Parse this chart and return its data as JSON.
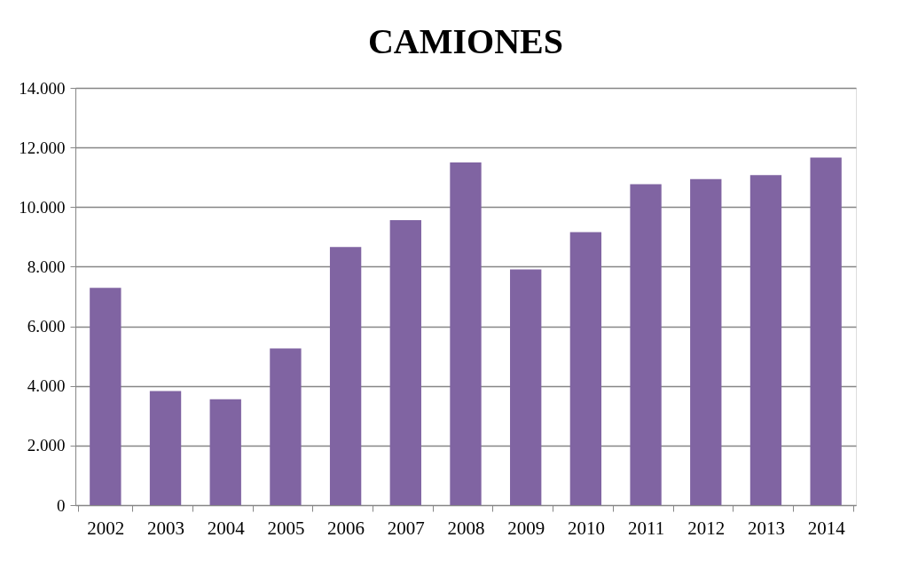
{
  "chart_data": {
    "type": "bar",
    "title": "CAMIONES",
    "categories": [
      "2002",
      "2003",
      "2004",
      "2005",
      "2006",
      "2007",
      "2008",
      "2009",
      "2010",
      "2011",
      "2012",
      "2013",
      "2014"
    ],
    "values": [
      7290,
      3830,
      3550,
      5260,
      8660,
      9560,
      11500,
      7910,
      9160,
      10770,
      10940,
      11070,
      11660
    ],
    "color": "#8064a2",
    "ylim": [
      0,
      14000
    ],
    "yticks": [
      0,
      {
        "value": 2000,
        "label": "2.000"
      },
      {
        "value": 4000,
        "label": "4.000"
      },
      {
        "value": 6000,
        "label": "6.000"
      },
      {
        "value": 8000,
        "label": "8.000"
      },
      {
        "value": 10000,
        "label": "10.000"
      },
      {
        "value": 12000,
        "label": "12.000"
      },
      {
        "value": 14000,
        "label": "14.000"
      }
    ],
    "grid": "y"
  }
}
